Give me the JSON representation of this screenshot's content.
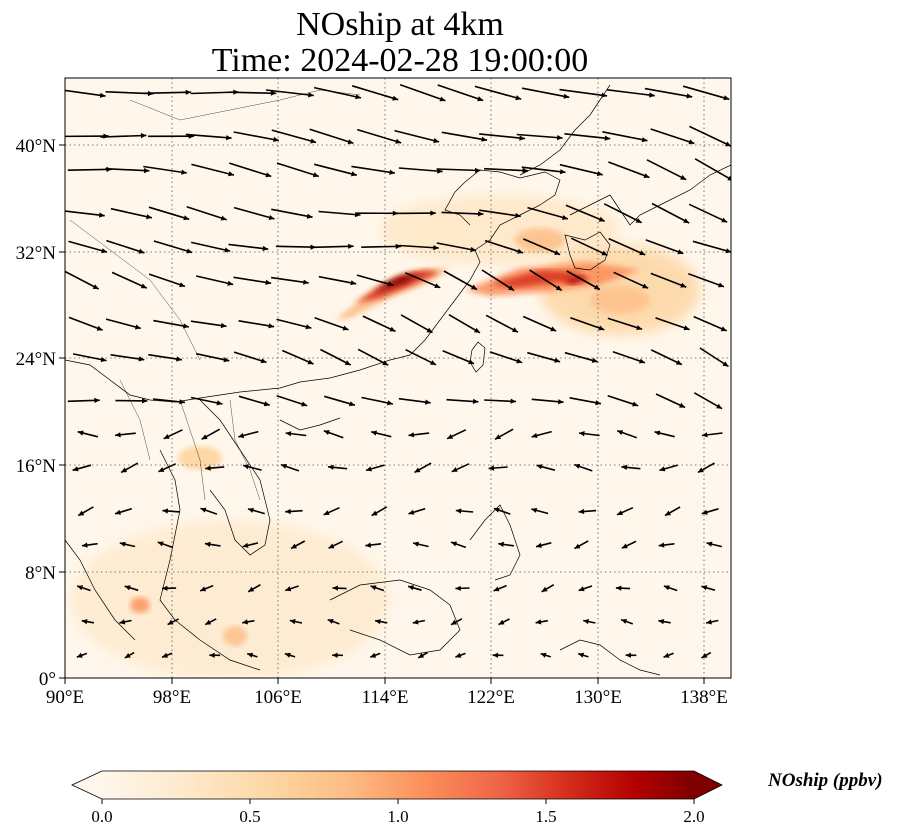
{
  "title": {
    "line1": "NOship at 4km",
    "line2": "Time: 2024-02-28 19:00:00"
  },
  "map": {
    "extent_lon": [
      90,
      140
    ],
    "extent_lat": [
      0,
      45
    ],
    "lon_ticks": [
      "90°E",
      "98°E",
      "106°E",
      "114°E",
      "122°E",
      "130°E",
      "138°E"
    ],
    "lat_ticks": [
      "0°",
      "8°N",
      "16°N",
      "24°N",
      "32°N",
      "40°N"
    ]
  },
  "colorbar": {
    "label": "NOship (ppbv)",
    "ticks": [
      "0.0",
      "0.5",
      "1.0",
      "1.5",
      "2.0"
    ],
    "range": [
      0.0,
      2.0
    ],
    "colormap": "OrRd",
    "colors": [
      "#fff7ec",
      "#fee8c8",
      "#fdd49e",
      "#fdbb84",
      "#fc8d59",
      "#ef6548",
      "#d7301f",
      "#b30000",
      "#7f0000"
    ]
  }
}
